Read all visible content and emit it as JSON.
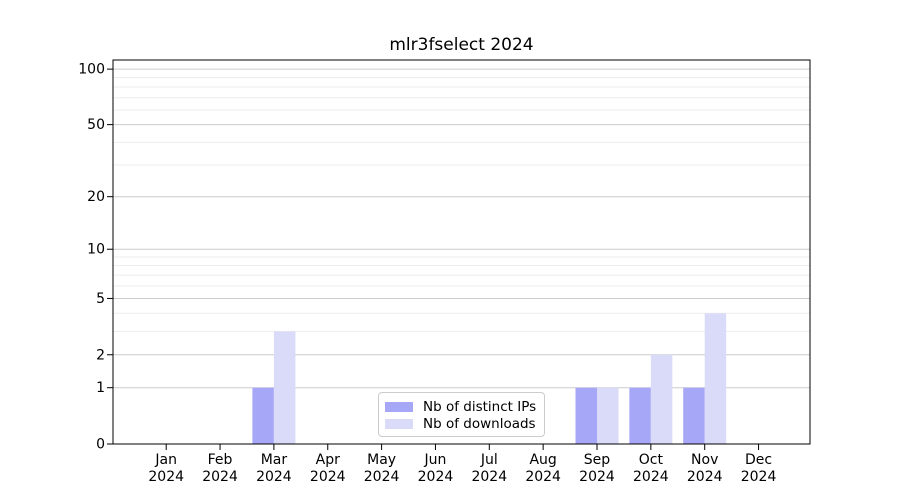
{
  "chart_data": {
    "type": "bar",
    "title": "mlr3fselect 2024",
    "categories": [
      "Jan",
      "Feb",
      "Mar",
      "Apr",
      "May",
      "Jun",
      "Jul",
      "Aug",
      "Sep",
      "Oct",
      "Nov",
      "Dec"
    ],
    "x_tick_second_line": "2024",
    "series": [
      {
        "name": "Nb of distinct IPs",
        "color": "#a7a7f8",
        "values": [
          0,
          0,
          1,
          0,
          0,
          0,
          0,
          0,
          1,
          1,
          1,
          0
        ]
      },
      {
        "name": "Nb of downloads",
        "color": "#dadaf9",
        "values": [
          0,
          0,
          3,
          0,
          0,
          0,
          0,
          0,
          1,
          2,
          4,
          0
        ]
      }
    ],
    "yscale": "log1p",
    "ylim": [
      0,
      112
    ],
    "y_major_ticks": [
      0,
      1,
      2,
      5,
      10,
      20,
      50,
      100
    ],
    "y_minor_ticks": [
      3,
      4,
      6,
      7,
      8,
      9,
      30,
      40,
      60,
      70,
      80,
      90
    ],
    "xlabel": "",
    "ylabel": "",
    "grid": "on",
    "legend_position": "lower-center",
    "colors": {
      "axis": "#000000",
      "tick_label": "#000000",
      "grid_major": "#cccccc",
      "grid_minor": "#ededed",
      "background": "#ffffff"
    }
  }
}
